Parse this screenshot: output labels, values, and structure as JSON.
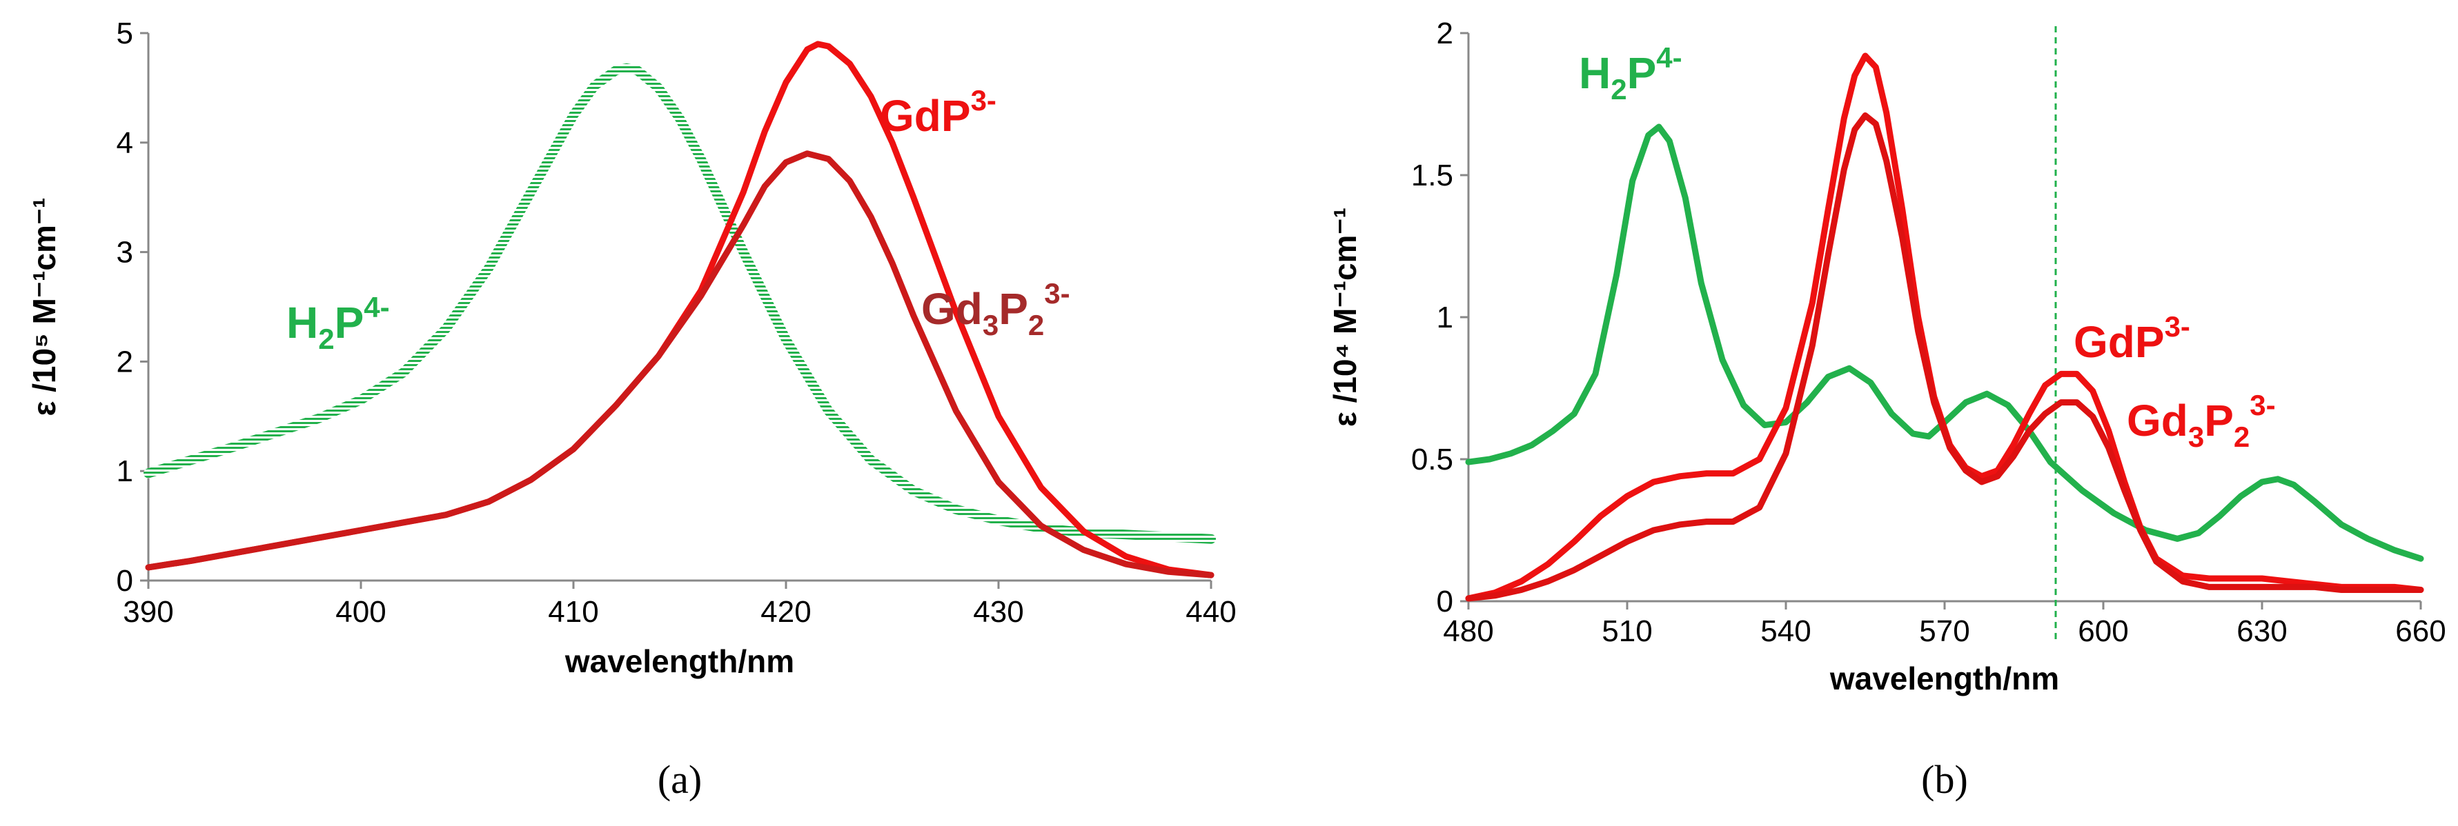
{
  "chart_data": [
    {
      "id": "a",
      "type": "line",
      "panel_label": "(a)",
      "xlabel": "wavelength/nm",
      "ylabel": "ε /10⁵ M⁻¹cm⁻¹",
      "xlim": [
        390,
        440
      ],
      "ylim": [
        0,
        5
      ],
      "xticks": [
        390,
        400,
        410,
        420,
        430,
        440
      ],
      "yticks": [
        0,
        1,
        2,
        3,
        4,
        5
      ],
      "colors": {
        "green": "#22b14c",
        "red": "#ee1111",
        "darkred": "#cc1a1a",
        "brown": "#a52a2a"
      },
      "annotations": [
        {
          "id": "h2p",
          "base": "H",
          "sub": "2",
          "base2": "P",
          "sup": "4-",
          "text": "H2P4-",
          "color": "#22b14c"
        },
        {
          "id": "gdp",
          "base": "GdP",
          "sup": "3-",
          "text": "GdP3-",
          "color": "#ee1111"
        },
        {
          "id": "gd3p2",
          "base": "Gd",
          "sub": "3",
          "base2": "P",
          "sub2": "2",
          "sup": "3-",
          "text": "Gd3P2 3-",
          "color": "#a52a2a"
        }
      ],
      "series": [
        {
          "name": "H2P4-",
          "color": "#22b14c",
          "style": "hatched",
          "x": [
            390,
            392,
            394,
            396,
            398,
            400,
            402,
            404,
            406,
            408,
            410,
            411,
            412,
            412.5,
            413,
            414,
            415,
            416,
            418,
            420,
            422,
            424,
            426,
            428,
            430,
            432,
            434,
            436,
            438,
            440
          ],
          "y": [
            0.98,
            1.1,
            1.22,
            1.35,
            1.48,
            1.65,
            1.9,
            2.3,
            2.85,
            3.55,
            4.25,
            4.52,
            4.66,
            4.68,
            4.66,
            4.5,
            4.22,
            3.85,
            3.0,
            2.2,
            1.55,
            1.1,
            0.82,
            0.65,
            0.55,
            0.48,
            0.44,
            0.42,
            0.4,
            0.38
          ]
        },
        {
          "name": "GdP3-",
          "color": "#ee1111",
          "style": "solid",
          "x": [
            390,
            392,
            394,
            396,
            398,
            400,
            402,
            404,
            406,
            408,
            410,
            412,
            414,
            416,
            418,
            419,
            420,
            421,
            421.5,
            422,
            423,
            424,
            425,
            426,
            428,
            430,
            432,
            434,
            436,
            438,
            440
          ],
          "y": [
            0.12,
            0.18,
            0.25,
            0.32,
            0.39,
            0.46,
            0.53,
            0.6,
            0.72,
            0.92,
            1.2,
            1.6,
            2.05,
            2.65,
            3.55,
            4.1,
            4.55,
            4.85,
            4.9,
            4.88,
            4.72,
            4.42,
            4.0,
            3.5,
            2.45,
            1.5,
            0.85,
            0.45,
            0.22,
            0.1,
            0.05
          ]
        },
        {
          "name": "Gd3P2 3-",
          "color": "#cc1a1a",
          "style": "solid",
          "x": [
            390,
            392,
            394,
            396,
            398,
            400,
            402,
            404,
            406,
            408,
            410,
            412,
            414,
            416,
            418,
            419,
            420,
            421,
            422,
            423,
            424,
            425,
            426,
            428,
            430,
            432,
            434,
            436,
            438,
            440
          ],
          "y": [
            0.12,
            0.18,
            0.25,
            0.32,
            0.39,
            0.46,
            0.53,
            0.6,
            0.72,
            0.92,
            1.2,
            1.6,
            2.05,
            2.6,
            3.25,
            3.6,
            3.82,
            3.9,
            3.85,
            3.65,
            3.32,
            2.9,
            2.42,
            1.55,
            0.9,
            0.5,
            0.28,
            0.15,
            0.08,
            0.05
          ]
        }
      ]
    },
    {
      "id": "b",
      "type": "line",
      "panel_label": "(b)",
      "xlabel": "wavelength/nm",
      "ylabel": "ε /10⁴ M⁻¹cm⁻¹",
      "xlim": [
        480,
        660
      ],
      "ylim": [
        0,
        2
      ],
      "xticks": [
        480,
        510,
        540,
        570,
        600,
        630,
        660
      ],
      "yticks": [
        0,
        0.5,
        1,
        1.5,
        2
      ],
      "dashed_vline_x": 591,
      "annotations": [
        {
          "id": "h2p",
          "base": "H",
          "sub": "2",
          "base2": "P",
          "sup": "4-",
          "text": "H2P4-",
          "color": "#22b14c"
        },
        {
          "id": "gdp",
          "base": "GdP",
          "sup": "3-",
          "text": "GdP3-",
          "color": "#ee1111"
        },
        {
          "id": "gd3p2",
          "base": "Gd",
          "sub": "3",
          "base2": "P",
          "sub2": "2",
          "sup": "3-",
          "text": "Gd3P2 3-",
          "color": "#ee1111"
        }
      ],
      "series": [
        {
          "name": "H2P4-",
          "color": "#22b14c",
          "style": "solid",
          "x": [
            480,
            484,
            488,
            492,
            496,
            500,
            504,
            508,
            511,
            514,
            516,
            518,
            521,
            524,
            528,
            532,
            536,
            540,
            544,
            548,
            552,
            556,
            560,
            564,
            567,
            570,
            574,
            578,
            582,
            586,
            590,
            596,
            602,
            608,
            614,
            618,
            622,
            626,
            630,
            633,
            636,
            640,
            645,
            650,
            655,
            660
          ],
          "y": [
            0.49,
            0.5,
            0.52,
            0.55,
            0.6,
            0.66,
            0.8,
            1.15,
            1.48,
            1.64,
            1.67,
            1.62,
            1.42,
            1.12,
            0.85,
            0.69,
            0.62,
            0.63,
            0.7,
            0.79,
            0.82,
            0.77,
            0.66,
            0.59,
            0.58,
            0.63,
            0.7,
            0.73,
            0.69,
            0.6,
            0.49,
            0.39,
            0.31,
            0.25,
            0.22,
            0.24,
            0.3,
            0.37,
            0.42,
            0.43,
            0.41,
            0.35,
            0.27,
            0.22,
            0.18,
            0.15
          ]
        },
        {
          "name": "GdP3-",
          "color": "#ee1111",
          "style": "solid",
          "x": [
            480,
            485,
            490,
            495,
            500,
            505,
            510,
            515,
            520,
            525,
            530,
            535,
            540,
            545,
            548,
            551,
            553,
            555,
            557,
            559,
            562,
            565,
            568,
            571,
            574,
            577,
            580,
            583,
            586,
            589,
            592,
            595,
            598,
            601,
            604,
            607,
            610,
            615,
            620,
            625,
            630,
            635,
            640,
            645,
            650,
            655,
            660
          ],
          "y": [
            0.01,
            0.03,
            0.07,
            0.13,
            0.21,
            0.3,
            0.37,
            0.42,
            0.44,
            0.45,
            0.45,
            0.5,
            0.68,
            1.05,
            1.38,
            1.7,
            1.85,
            1.92,
            1.88,
            1.72,
            1.38,
            1.0,
            0.72,
            0.55,
            0.47,
            0.44,
            0.46,
            0.55,
            0.66,
            0.76,
            0.8,
            0.8,
            0.74,
            0.6,
            0.42,
            0.26,
            0.15,
            0.09,
            0.08,
            0.08,
            0.08,
            0.07,
            0.06,
            0.05,
            0.05,
            0.05,
            0.04
          ]
        },
        {
          "name": "Gd3P2 3-",
          "color": "#dd1111",
          "style": "solid",
          "x": [
            480,
            485,
            490,
            495,
            500,
            505,
            510,
            515,
            520,
            525,
            530,
            535,
            540,
            545,
            548,
            551,
            553,
            555,
            557,
            559,
            562,
            565,
            568,
            571,
            574,
            577,
            580,
            583,
            586,
            589,
            592,
            595,
            598,
            601,
            604,
            607,
            610,
            615,
            620,
            625,
            630,
            635,
            640,
            645,
            650,
            655,
            660
          ],
          "y": [
            0.01,
            0.02,
            0.04,
            0.07,
            0.11,
            0.16,
            0.21,
            0.25,
            0.27,
            0.28,
            0.28,
            0.33,
            0.52,
            0.9,
            1.22,
            1.52,
            1.66,
            1.71,
            1.68,
            1.55,
            1.28,
            0.95,
            0.7,
            0.54,
            0.46,
            0.42,
            0.44,
            0.51,
            0.6,
            0.66,
            0.7,
            0.7,
            0.65,
            0.54,
            0.39,
            0.25,
            0.14,
            0.07,
            0.05,
            0.05,
            0.05,
            0.05,
            0.05,
            0.04,
            0.04,
            0.04,
            0.04
          ]
        }
      ]
    }
  ]
}
